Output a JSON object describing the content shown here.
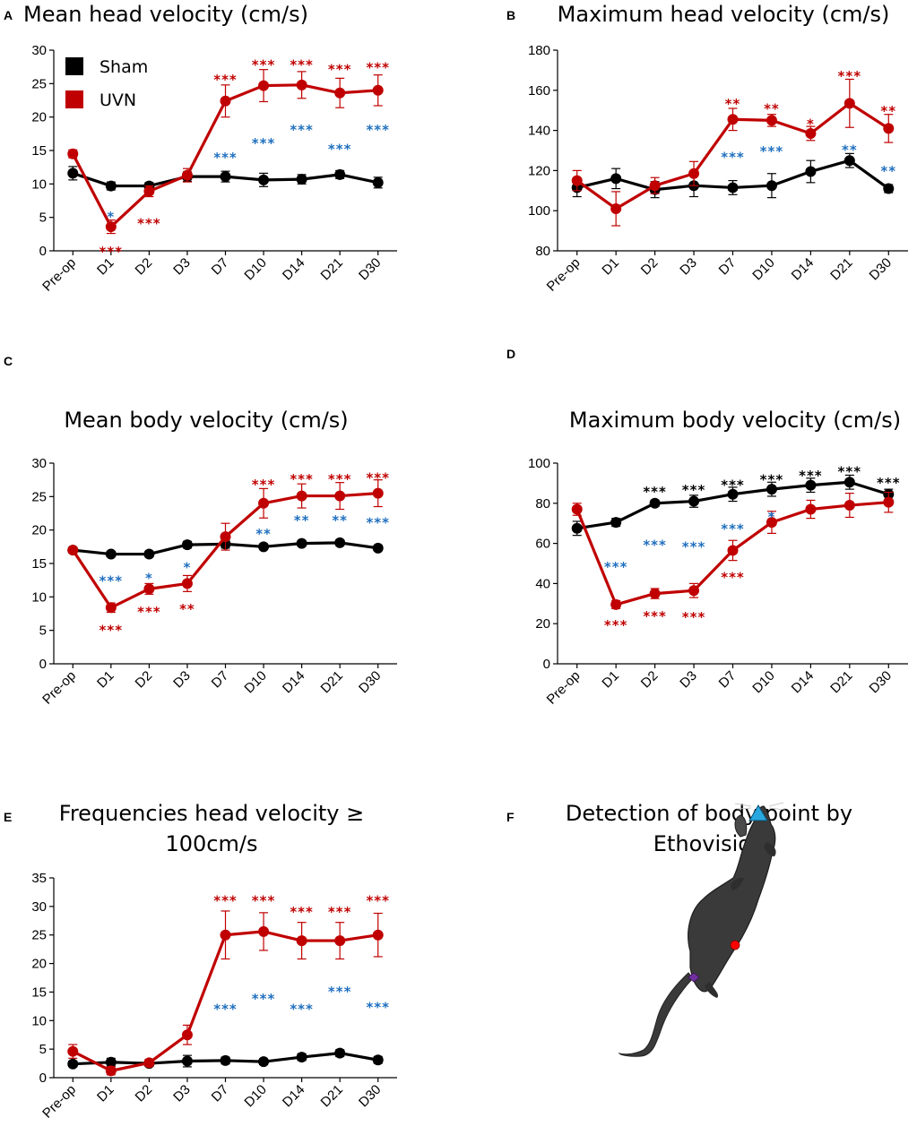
{
  "colors": {
    "sham": "#000000",
    "uvn": "#c00000",
    "stats_blue": "#1f6fbf"
  },
  "legend": {
    "sham": "Sham",
    "uvn": "UVN"
  },
  "panel_f": {
    "label": "F",
    "title_lines": [
      "Detection of body point by",
      "Ethovision"
    ],
    "markers": {
      "head": "#29a8e0",
      "body": "#ff0000",
      "tail_base": "#7030a0"
    }
  },
  "chart_data": [
    {
      "id": "A",
      "label": "A",
      "type": "line",
      "title_lines": [
        "Mean head velocity (cm/s)"
      ],
      "categories": [
        "Pre-op",
        "D1",
        "D2",
        "D3",
        "D7",
        "D10",
        "D14",
        "D21",
        "D30"
      ],
      "ylim": [
        0,
        30
      ],
      "yticks": [
        0,
        5,
        10,
        15,
        20,
        25,
        30
      ],
      "series": [
        {
          "name": "Sham",
          "values": [
            11.6,
            9.7,
            9.7,
            11.1,
            11.1,
            10.6,
            10.7,
            11.4,
            10.2
          ],
          "err": [
            1.0,
            0.6,
            0.5,
            0.7,
            0.8,
            1.0,
            0.7,
            0.6,
            0.8
          ]
        },
        {
          "name": "UVN",
          "values": [
            14.5,
            3.6,
            8.9,
            11.3,
            22.4,
            24.7,
            24.8,
            23.6,
            24.0
          ],
          "err": [
            0.6,
            1.0,
            0.8,
            1.0,
            2.4,
            2.4,
            2.0,
            2.2,
            2.3
          ]
        }
      ],
      "annotations": [
        {
          "x": "D1",
          "y": 5.5,
          "text": "*",
          "color": "blue"
        },
        {
          "x": "D1",
          "y": 0.3,
          "text": "***",
          "color": "red"
        },
        {
          "x": "D2",
          "y": 4.5,
          "text": "***",
          "color": "red"
        },
        {
          "x": "D7",
          "y": 26.0,
          "text": "***",
          "color": "red"
        },
        {
          "x": "D7",
          "y": 14.3,
          "text": "***",
          "color": "blue"
        },
        {
          "x": "D10",
          "y": 28.2,
          "text": "***",
          "color": "red"
        },
        {
          "x": "D10",
          "y": 16.5,
          "text": "***",
          "color": "blue"
        },
        {
          "x": "D14",
          "y": 28.2,
          "text": "***",
          "color": "red"
        },
        {
          "x": "D14",
          "y": 18.5,
          "text": "***",
          "color": "blue"
        },
        {
          "x": "D21",
          "y": 27.5,
          "text": "***",
          "color": "red"
        },
        {
          "x": "D21",
          "y": 15.6,
          "text": "***",
          "color": "blue"
        },
        {
          "x": "D30",
          "y": 27.8,
          "text": "***",
          "color": "red"
        },
        {
          "x": "D30",
          "y": 18.5,
          "text": "***",
          "color": "blue"
        }
      ]
    },
    {
      "id": "B",
      "label": "B",
      "type": "line",
      "title_lines": [
        "Maximum head velocity (cm/s)"
      ],
      "categories": [
        "Pre-op",
        "D1",
        "D2",
        "D3",
        "D7",
        "D10",
        "D14",
        "D21",
        "D30"
      ],
      "ylim": [
        80,
        180
      ],
      "yticks": [
        80,
        100,
        120,
        140,
        160,
        180
      ],
      "series": [
        {
          "name": "Sham",
          "values": [
            111.5,
            116.0,
            110.5,
            112.5,
            111.5,
            112.5,
            119.5,
            125.0,
            111.0
          ],
          "err": [
            4.5,
            5.0,
            4.0,
            5.5,
            3.5,
            6.0,
            5.5,
            3.5,
            2.0
          ]
        },
        {
          "name": "UVN",
          "values": [
            115.0,
            101.0,
            112.5,
            118.5,
            145.5,
            145.0,
            138.5,
            153.5,
            141.0
          ],
          "err": [
            5.0,
            8.5,
            4.0,
            6.0,
            5.5,
            3.0,
            3.5,
            12.0,
            7.0
          ]
        }
      ],
      "annotations": [
        {
          "x": "D7",
          "y": 154.5,
          "text": "**",
          "color": "red"
        },
        {
          "x": "D7",
          "y": 128.0,
          "text": "***",
          "color": "blue"
        },
        {
          "x": "D10",
          "y": 152.0,
          "text": "**",
          "color": "red"
        },
        {
          "x": "D10",
          "y": 131.0,
          "text": "***",
          "color": "blue"
        },
        {
          "x": "D14",
          "y": 144.5,
          "text": "*",
          "color": "red"
        },
        {
          "x": "D21",
          "y": 168.5,
          "text": "***",
          "color": "red"
        },
        {
          "x": "D21",
          "y": 131.5,
          "text": "**",
          "color": "blue"
        },
        {
          "x": "D30",
          "y": 151.0,
          "text": "**",
          "color": "red"
        },
        {
          "x": "D30",
          "y": 121.0,
          "text": "**",
          "color": "blue"
        }
      ]
    },
    {
      "id": "C",
      "label": "C",
      "type": "line",
      "title_lines": [
        "Mean body velocity (cm/s)"
      ],
      "categories": [
        "Pre-op",
        "D1",
        "D2",
        "D3",
        "D7",
        "D10",
        "D14",
        "D21",
        "D30"
      ],
      "ylim": [
        0,
        30
      ],
      "yticks": [
        0,
        5,
        10,
        15,
        20,
        25,
        30
      ],
      "series": [
        {
          "name": "Sham",
          "values": [
            17.0,
            16.4,
            16.4,
            17.8,
            17.9,
            17.5,
            18.0,
            18.1,
            17.3
          ],
          "err": [
            0.4,
            0.4,
            0.4,
            0.5,
            0.6,
            0.4,
            0.4,
            0.4,
            0.4
          ]
        },
        {
          "name": "UVN",
          "values": [
            17.0,
            8.4,
            11.2,
            12.0,
            19.0,
            24.0,
            25.1,
            25.1,
            25.5
          ],
          "err": [
            0.4,
            0.7,
            0.8,
            1.2,
            2.0,
            2.2,
            1.8,
            2.0,
            2.0
          ]
        }
      ],
      "annotations": [
        {
          "x": "Pre-op",
          "y": -99,
          "text": "",
          "color": "blue"
        },
        {
          "x": "D1",
          "y": 12.8,
          "text": "***",
          "color": "blue"
        },
        {
          "x": "D1",
          "y": 5.4,
          "text": "***",
          "color": "red"
        },
        {
          "x": "D2",
          "y": 13.2,
          "text": "*",
          "color": "blue"
        },
        {
          "x": "D2",
          "y": 8.2,
          "text": "***",
          "color": "red"
        },
        {
          "x": "D3",
          "y": 14.8,
          "text": "*",
          "color": "blue"
        },
        {
          "x": "D3",
          "y": 8.6,
          "text": "**",
          "color": "red"
        },
        {
          "x": "D10",
          "y": 27.2,
          "text": "***",
          "color": "red"
        },
        {
          "x": "D10",
          "y": 19.8,
          "text": "**",
          "color": "blue"
        },
        {
          "x": "D14",
          "y": 28.0,
          "text": "***",
          "color": "red"
        },
        {
          "x": "D14",
          "y": 21.8,
          "text": "**",
          "color": "blue"
        },
        {
          "x": "D21",
          "y": 28.0,
          "text": "***",
          "color": "red"
        },
        {
          "x": "D21",
          "y": 21.8,
          "text": "**",
          "color": "blue"
        },
        {
          "x": "D30",
          "y": 28.2,
          "text": "***",
          "color": "red"
        },
        {
          "x": "D30",
          "y": 21.5,
          "text": "***",
          "color": "blue"
        }
      ]
    },
    {
      "id": "D",
      "label": "D",
      "type": "line",
      "title_lines": [
        "Maximum body velocity (cm/s)"
      ],
      "categories": [
        "Pre-op",
        "D1",
        "D2",
        "D3",
        "D7",
        "D10",
        "D14",
        "D21",
        "D30"
      ],
      "ylim": [
        0,
        100
      ],
      "yticks": [
        0,
        20,
        40,
        60,
        80,
        100
      ],
      "series": [
        {
          "name": "Sham",
          "values": [
            67.5,
            70.5,
            80.0,
            81.0,
            84.5,
            87.0,
            89.0,
            90.5,
            84.5
          ],
          "err": [
            3.5,
            2.0,
            1.5,
            3.0,
            3.5,
            3.5,
            3.5,
            3.5,
            2.5
          ]
        },
        {
          "name": "UVN",
          "values": [
            77.0,
            29.5,
            35.0,
            36.5,
            56.5,
            70.5,
            77.0,
            79.0,
            80.5
          ],
          "err": [
            3.0,
            2.0,
            2.5,
            3.5,
            5.0,
            5.5,
            4.5,
            6.0,
            5.0
          ]
        }
      ],
      "annotations": [
        {
          "x": "D1",
          "y": 49.5,
          "text": "***",
          "color": "blue"
        },
        {
          "x": "D1",
          "y": 20.5,
          "text": "***",
          "color": "red"
        },
        {
          "x": "D2",
          "y": 87.0,
          "text": "***",
          "color": "black"
        },
        {
          "x": "D2",
          "y": 60.5,
          "text": "***",
          "color": "blue"
        },
        {
          "x": "D2",
          "y": 25.0,
          "text": "***",
          "color": "red"
        },
        {
          "x": "D3",
          "y": 88.0,
          "text": "***",
          "color": "black"
        },
        {
          "x": "D3",
          "y": 59.5,
          "text": "***",
          "color": "blue"
        },
        {
          "x": "D3",
          "y": 24.5,
          "text": "***",
          "color": "red"
        },
        {
          "x": "D7",
          "y": 90.5,
          "text": "***",
          "color": "black"
        },
        {
          "x": "D7",
          "y": 68.5,
          "text": "***",
          "color": "blue"
        },
        {
          "x": "D7",
          "y": 44.5,
          "text": "***",
          "color": "red"
        },
        {
          "x": "D10",
          "y": 93.0,
          "text": "***",
          "color": "black"
        },
        {
          "x": "D10",
          "y": 74.5,
          "text": "*",
          "color": "blue"
        },
        {
          "x": "D14",
          "y": 95.0,
          "text": "***",
          "color": "black"
        },
        {
          "x": "D21",
          "y": 97.0,
          "text": "***",
          "color": "black"
        },
        {
          "x": "D30",
          "y": 91.5,
          "text": "***",
          "color": "black"
        }
      ]
    },
    {
      "id": "E",
      "label": "E",
      "type": "line",
      "title_lines": [
        "Frequencies head velocity ≥",
        "100cm/s"
      ],
      "categories": [
        "Pre-op",
        "D1",
        "D2",
        "D3",
        "D7",
        "D10",
        "D14",
        "D21",
        "D30"
      ],
      "ylim": [
        0,
        35
      ],
      "yticks": [
        0,
        5,
        10,
        15,
        20,
        25,
        30,
        35
      ],
      "series": [
        {
          "name": "Sham",
          "values": [
            2.4,
            2.7,
            2.5,
            2.9,
            3.0,
            2.8,
            3.6,
            4.3,
            3.1
          ],
          "err": [
            0.5,
            0.7,
            0.5,
            1.0,
            0.6,
            0.5,
            0.6,
            0.6,
            0.6
          ]
        },
        {
          "name": "UVN",
          "values": [
            4.6,
            1.2,
            2.6,
            7.5,
            25.0,
            25.6,
            24.0,
            24.0,
            25.0
          ],
          "err": [
            1.2,
            0.7,
            0.6,
            1.7,
            4.2,
            3.3,
            3.2,
            3.2,
            3.8
          ]
        }
      ],
      "annotations": [
        {
          "x": "D7",
          "y": 31.5,
          "text": "***",
          "color": "red"
        },
        {
          "x": "D7",
          "y": 12.5,
          "text": "***",
          "color": "blue"
        },
        {
          "x": "D10",
          "y": 31.5,
          "text": "***",
          "color": "red"
        },
        {
          "x": "D10",
          "y": 14.3,
          "text": "***",
          "color": "blue"
        },
        {
          "x": "D14",
          "y": 29.5,
          "text": "***",
          "color": "red"
        },
        {
          "x": "D14",
          "y": 12.5,
          "text": "***",
          "color": "blue"
        },
        {
          "x": "D21",
          "y": 29.5,
          "text": "***",
          "color": "red"
        },
        {
          "x": "D21",
          "y": 15.5,
          "text": "***",
          "color": "blue"
        },
        {
          "x": "D30",
          "y": 31.5,
          "text": "***",
          "color": "red"
        },
        {
          "x": "D30",
          "y": 12.8,
          "text": "***",
          "color": "blue"
        }
      ]
    }
  ]
}
